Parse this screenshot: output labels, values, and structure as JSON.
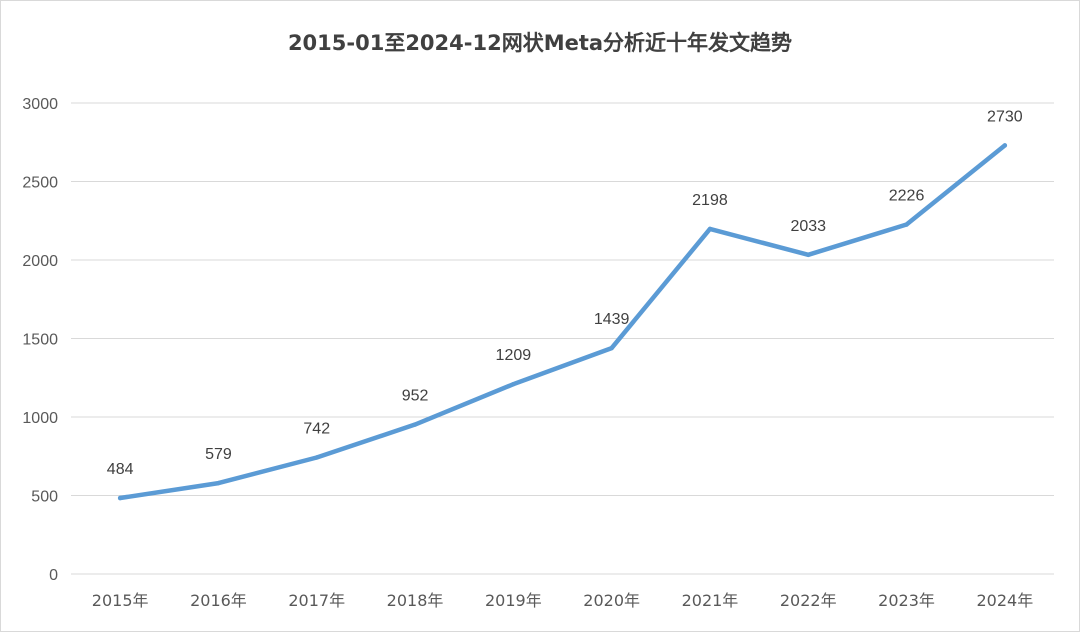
{
  "chart_data": {
    "type": "line",
    "title": "2015-01至2024-12网状Meta分析近十年发文趋势",
    "xlabel": "",
    "ylabel": "",
    "categories": [
      "2015年",
      "2016年",
      "2017年",
      "2018年",
      "2019年",
      "2020年",
      "2021年",
      "2022年",
      "2023年",
      "2024年"
    ],
    "series": [
      {
        "values": [
          484,
          579,
          742,
          952,
          1209,
          1439,
          2198,
          2033,
          2226,
          2730
        ],
        "labels": [
          "484",
          "579",
          "742",
          "952",
          "1209",
          "1439",
          "2198",
          "2033",
          "2226",
          "2730"
        ]
      }
    ],
    "ylim": [
      0,
      3000
    ],
    "yticks": [
      "0",
      "500",
      "1000",
      "1500",
      "2000",
      "2500",
      "3000"
    ],
    "grid": true,
    "legend": "none",
    "line_color": "#5b9bd5",
    "grid_color": "#d9d9d9"
  }
}
